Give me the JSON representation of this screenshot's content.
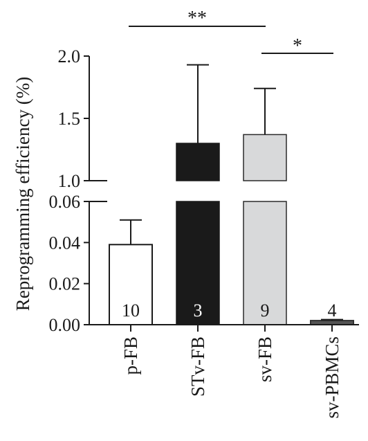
{
  "chart_data": {
    "type": "bar",
    "broken_axis": true,
    "ylabel": "Reprogramming efficiency (%)",
    "categories": [
      "p-FB",
      "STv-FB",
      "sv-FB",
      "sv-PBMCs"
    ],
    "values": [
      0.039,
      1.3,
      1.37,
      0.002
    ],
    "errors": [
      0.012,
      0.63,
      0.37,
      0.0005
    ],
    "n_labels": [
      "10",
      "3",
      "9",
      "4"
    ],
    "bar_colors": [
      "#ffffff",
      "#1a1a1a",
      "#d8d9da",
      "#555555"
    ],
    "n_label_colors": [
      "#1a1a1a",
      "#ffffff",
      "#1a1a1a",
      "#1a1a1a"
    ],
    "lower_axis": {
      "ylim": [
        0,
        0.06
      ],
      "ticks": [
        "0.00",
        "0.02",
        "0.04",
        "0.06"
      ]
    },
    "upper_axis": {
      "ylim": [
        1.0,
        2.0
      ],
      "ticks": [
        "1.0",
        "1.5",
        "2.0"
      ]
    },
    "significance": [
      {
        "from": "p-FB",
        "to": "sv-FB",
        "label": "**"
      },
      {
        "from": "sv-FB",
        "to": "sv-PBMCs",
        "label": "*"
      }
    ]
  }
}
